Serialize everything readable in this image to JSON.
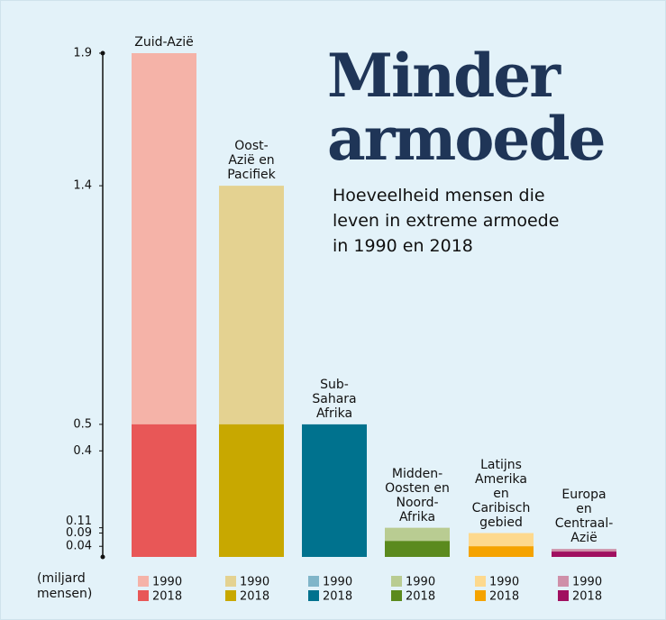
{
  "chart_data": {
    "type": "bar",
    "title": "Minder\narmoede",
    "subtitle": "Hoeveelheid mensen die\nleven in extreme armoede\nin 1990 en 2018",
    "y_label": "(miljard\nmensen)",
    "categories": [
      "Zuid-Azië",
      "Oost-\nAzië en\nPacifiek",
      "Sub-\nSahara\nAfrika",
      "Midden-\nOosten en\nNoord-\nAfrika",
      "Latijns\nAmerika\nen\nCaribisch\ngebied",
      "Europa\nen\nCentraal-\nAzië"
    ],
    "series": [
      {
        "name": "1990",
        "colors": [
          "#f5b3a8",
          "#e4d291",
          "#80b5c9",
          "#b9cc92",
          "#fdd98e",
          "#cf90a9"
        ],
        "values": [
          1.9,
          1.4,
          0.4,
          0.11,
          0.09,
          0.03
        ]
      },
      {
        "name": "2018",
        "colors": [
          "#e85757",
          "#c8a800",
          "#00728e",
          "#5b8a1e",
          "#f5a300",
          "#a01060"
        ],
        "values": [
          0.5,
          0.5,
          0.5,
          0.06,
          0.04,
          0.02
        ]
      }
    ],
    "ylim": [
      0,
      1.9
    ],
    "yticks": [
      0.04,
      0.09,
      0.11,
      0.4,
      0.5,
      1.4,
      1.9
    ]
  }
}
